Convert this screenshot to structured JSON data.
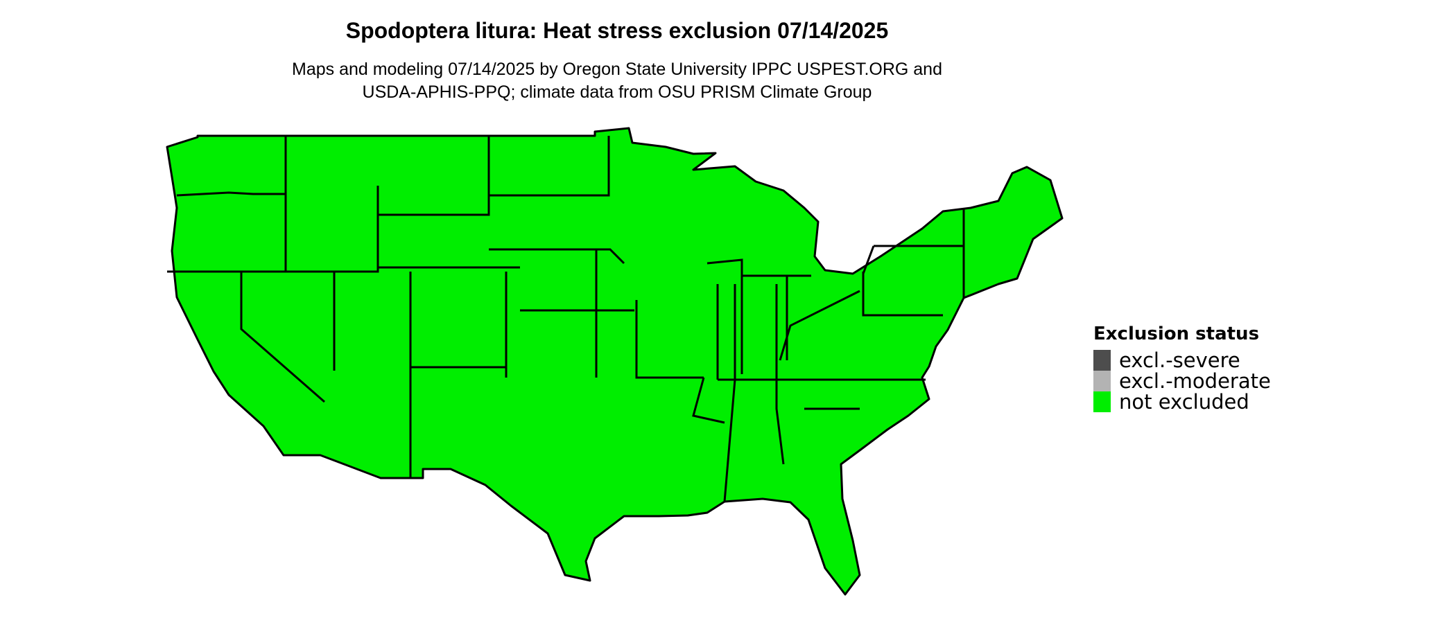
{
  "title": "Spodoptera litura: Heat stress exclusion 07/14/2025",
  "subtitle_line1": "Maps and modeling 07/14/2025 by Oregon State University IPPC USPEST.ORG and",
  "subtitle_line2": "USDA-APHIS-PPQ; climate data from OSU PRISM Climate Group",
  "map": {
    "region": "conterminous United States",
    "fill_status": "not excluded",
    "fill_color": "#00EE00",
    "border_color": "#000000"
  },
  "legend": {
    "title": "Exclusion status",
    "items": [
      {
        "label": "excl.-severe",
        "color": "#4D4D4D"
      },
      {
        "label": "excl.-moderate",
        "color": "#B3B3B3"
      },
      {
        "label": "not excluded",
        "color": "#00EE00"
      }
    ]
  }
}
